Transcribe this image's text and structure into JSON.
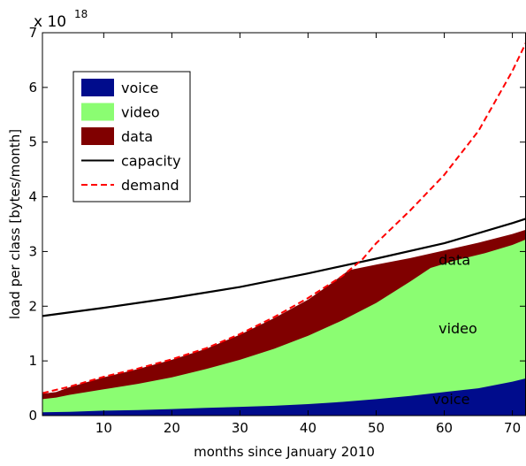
{
  "chart_data": {
    "type": "area",
    "xlabel": "months since January 2010",
    "ylabel": "load per class [bytes/month]",
    "y_exponent_label": "x 10",
    "y_exponent": "18",
    "xlim": [
      1,
      72
    ],
    "ylim": [
      0,
      7
    ],
    "x_ticks": [
      10,
      20,
      30,
      40,
      50,
      60,
      70
    ],
    "y_ticks": [
      0,
      1,
      2,
      3,
      4,
      5,
      6,
      7
    ],
    "grid": false,
    "legend_position": "top-left",
    "stacked_areas": [
      {
        "name": "voice",
        "color": "#000c8c",
        "points": [
          [
            1,
            0.06
          ],
          [
            5,
            0.07
          ],
          [
            10,
            0.09
          ],
          [
            15,
            0.1
          ],
          [
            20,
            0.12
          ],
          [
            25,
            0.14
          ],
          [
            30,
            0.16
          ],
          [
            35,
            0.18
          ],
          [
            40,
            0.21
          ],
          [
            45,
            0.25
          ],
          [
            50,
            0.3
          ],
          [
            55,
            0.36
          ],
          [
            60,
            0.43
          ],
          [
            65,
            0.5
          ],
          [
            70,
            0.62
          ],
          [
            72,
            0.68
          ]
        ]
      },
      {
        "name": "video",
        "color": "#8bfd72",
        "points": [
          [
            1,
            0.3
          ],
          [
            3,
            0.33
          ],
          [
            5,
            0.38
          ],
          [
            10,
            0.48
          ],
          [
            15,
            0.58
          ],
          [
            20,
            0.7
          ],
          [
            25,
            0.85
          ],
          [
            30,
            1.02
          ],
          [
            35,
            1.22
          ],
          [
            40,
            1.46
          ],
          [
            45,
            1.74
          ],
          [
            50,
            2.06
          ],
          [
            55,
            2.45
          ],
          [
            58,
            2.7
          ],
          [
            62,
            2.85
          ],
          [
            66,
            2.97
          ],
          [
            70,
            3.12
          ],
          [
            72,
            3.22
          ]
        ]
      },
      {
        "name": "data",
        "color": "#800000",
        "points": [
          [
            1,
            0.4
          ],
          [
            3,
            0.43
          ],
          [
            5,
            0.52
          ],
          [
            10,
            0.7
          ],
          [
            15,
            0.85
          ],
          [
            20,
            1.02
          ],
          [
            25,
            1.22
          ],
          [
            30,
            1.48
          ],
          [
            35,
            1.78
          ],
          [
            40,
            2.12
          ],
          [
            43,
            2.38
          ],
          [
            46,
            2.66
          ],
          [
            50,
            2.76
          ],
          [
            55,
            2.88
          ],
          [
            60,
            3.02
          ],
          [
            65,
            3.16
          ],
          [
            70,
            3.32
          ],
          [
            72,
            3.4
          ]
        ]
      }
    ],
    "lines": [
      {
        "name": "capacity",
        "color": "#000000",
        "style": "solid",
        "points": [
          [
            1,
            1.82
          ],
          [
            10,
            1.97
          ],
          [
            20,
            2.15
          ],
          [
            30,
            2.35
          ],
          [
            40,
            2.6
          ],
          [
            50,
            2.87
          ],
          [
            60,
            3.15
          ],
          [
            70,
            3.52
          ],
          [
            72,
            3.6
          ]
        ]
      },
      {
        "name": "demand",
        "color": "#ff0000",
        "style": "dashed",
        "points": [
          [
            1,
            0.41
          ],
          [
            5,
            0.53
          ],
          [
            10,
            0.71
          ],
          [
            15,
            0.86
          ],
          [
            20,
            1.03
          ],
          [
            25,
            1.23
          ],
          [
            30,
            1.49
          ],
          [
            35,
            1.8
          ],
          [
            40,
            2.15
          ],
          [
            45,
            2.55
          ],
          [
            48,
            2.86
          ],
          [
            50,
            3.15
          ],
          [
            55,
            3.75
          ],
          [
            60,
            4.4
          ],
          [
            65,
            5.2
          ],
          [
            70,
            6.3
          ],
          [
            72,
            6.82
          ]
        ]
      }
    ],
    "area_labels": [
      {
        "text": "data",
        "x": 61.5,
        "y": 2.83
      },
      {
        "text": "video",
        "x": 62,
        "y": 1.58
      },
      {
        "text": "voice",
        "x": 61,
        "y": 0.28
      }
    ],
    "legend": [
      {
        "label": "voice",
        "kind": "patch",
        "color": "#000c8c"
      },
      {
        "label": "video",
        "kind": "patch",
        "color": "#8bfd72"
      },
      {
        "label": "data",
        "kind": "patch",
        "color": "#800000"
      },
      {
        "label": "capacity",
        "kind": "line",
        "color": "#000000",
        "style": "solid"
      },
      {
        "label": "demand",
        "kind": "line",
        "color": "#ff0000",
        "style": "dashed"
      }
    ]
  }
}
